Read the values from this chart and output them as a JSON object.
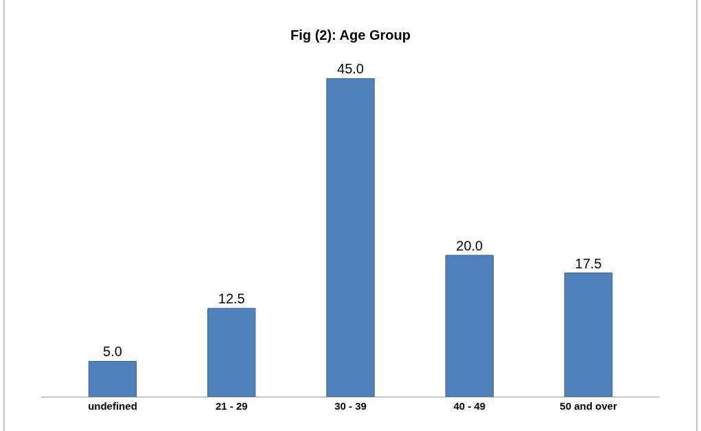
{
  "chart_data": {
    "type": "bar",
    "title": "Fig (2): Age Group",
    "categories": [
      "undefined",
      "21 - 29",
      "30 - 39",
      "40 - 49",
      "50 and over"
    ],
    "values": [
      5.0,
      12.5,
      45.0,
      20.0,
      17.5
    ],
    "value_labels": [
      "5.0",
      "12.5",
      "45.0",
      "20.0",
      "17.5"
    ],
    "color": "#4f81bd"
  }
}
